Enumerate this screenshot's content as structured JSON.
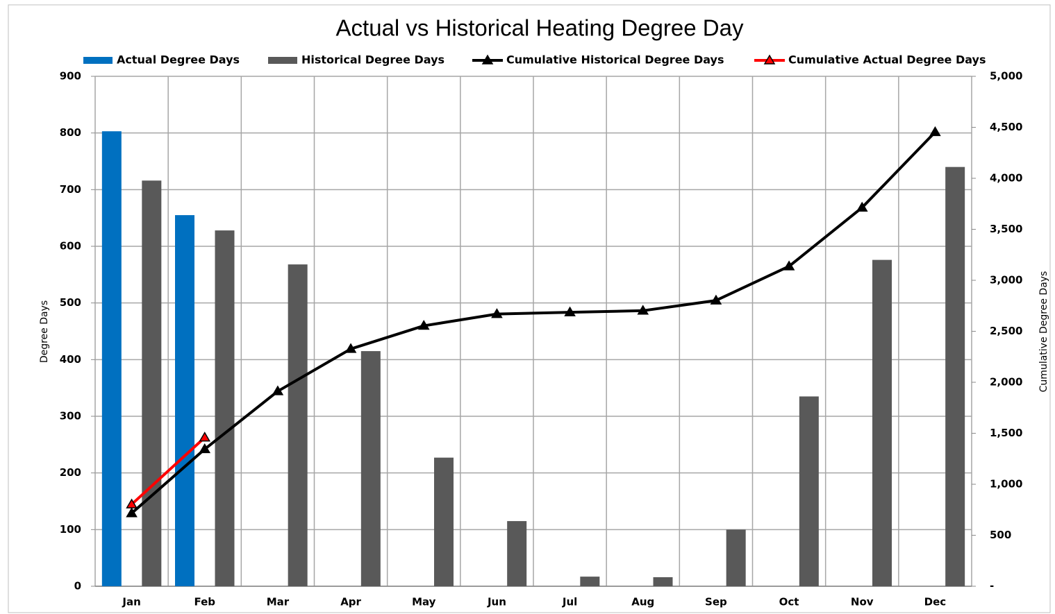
{
  "chart_data": {
    "type": "combo",
    "title": "Actual vs Historical Heating Degree Day",
    "y_label": "Degree Days",
    "y2_label": "Cumulative Degree Days",
    "categories": [
      "Jan",
      "Feb",
      "Mar",
      "Apr",
      "May",
      "Jun",
      "Jul",
      "Aug",
      "Sep",
      "Oct",
      "Nov",
      "Dec"
    ],
    "series": [
      {
        "name": "Actual Degree Days",
        "type": "bar",
        "color": "#0070c0",
        "values": [
          803,
          655,
          null,
          null,
          null,
          null,
          null,
          null,
          null,
          null,
          null,
          null
        ]
      },
      {
        "name": "Historical Degree Days",
        "type": "bar",
        "color": "#595959",
        "values": [
          716,
          628,
          568,
          415,
          227,
          115,
          17,
          16,
          100,
          335,
          576,
          740
        ]
      },
      {
        "name": "Cumulative Historical Degree Days",
        "type": "line",
        "axis": "y2",
        "color": "#000000",
        "values": [
          716,
          1344,
          1912,
          2327,
          2554,
          2669,
          2686,
          2702,
          2802,
          3137,
          3713,
          4453
        ]
      },
      {
        "name": "Cumulative Actual Degree Days",
        "type": "line",
        "axis": "y2",
        "color": "#ff0000",
        "values": [
          803,
          1458,
          null,
          null,
          null,
          null,
          null,
          null,
          null,
          null,
          null,
          null
        ]
      }
    ],
    "ylim": [
      0,
      900
    ],
    "yticks": [
      0,
      100,
      200,
      300,
      400,
      500,
      600,
      700,
      800,
      900
    ],
    "y2lim": [
      0,
      5000
    ],
    "y2ticks": [
      {
        "value": 0,
        "label": "-"
      },
      {
        "value": 500,
        "label": "500"
      },
      {
        "value": 1000,
        "label": "1,000"
      },
      {
        "value": 1500,
        "label": "1,500"
      },
      {
        "value": 2000,
        "label": "2,000"
      },
      {
        "value": 2500,
        "label": "2,500"
      },
      {
        "value": 3000,
        "label": "3,000"
      },
      {
        "value": 3500,
        "label": "3,500"
      },
      {
        "value": 4000,
        "label": "4,000"
      },
      {
        "value": 4500,
        "label": "4,500"
      },
      {
        "value": 5000,
        "label": "5,000"
      }
    ],
    "grid": true,
    "legend": "top"
  }
}
